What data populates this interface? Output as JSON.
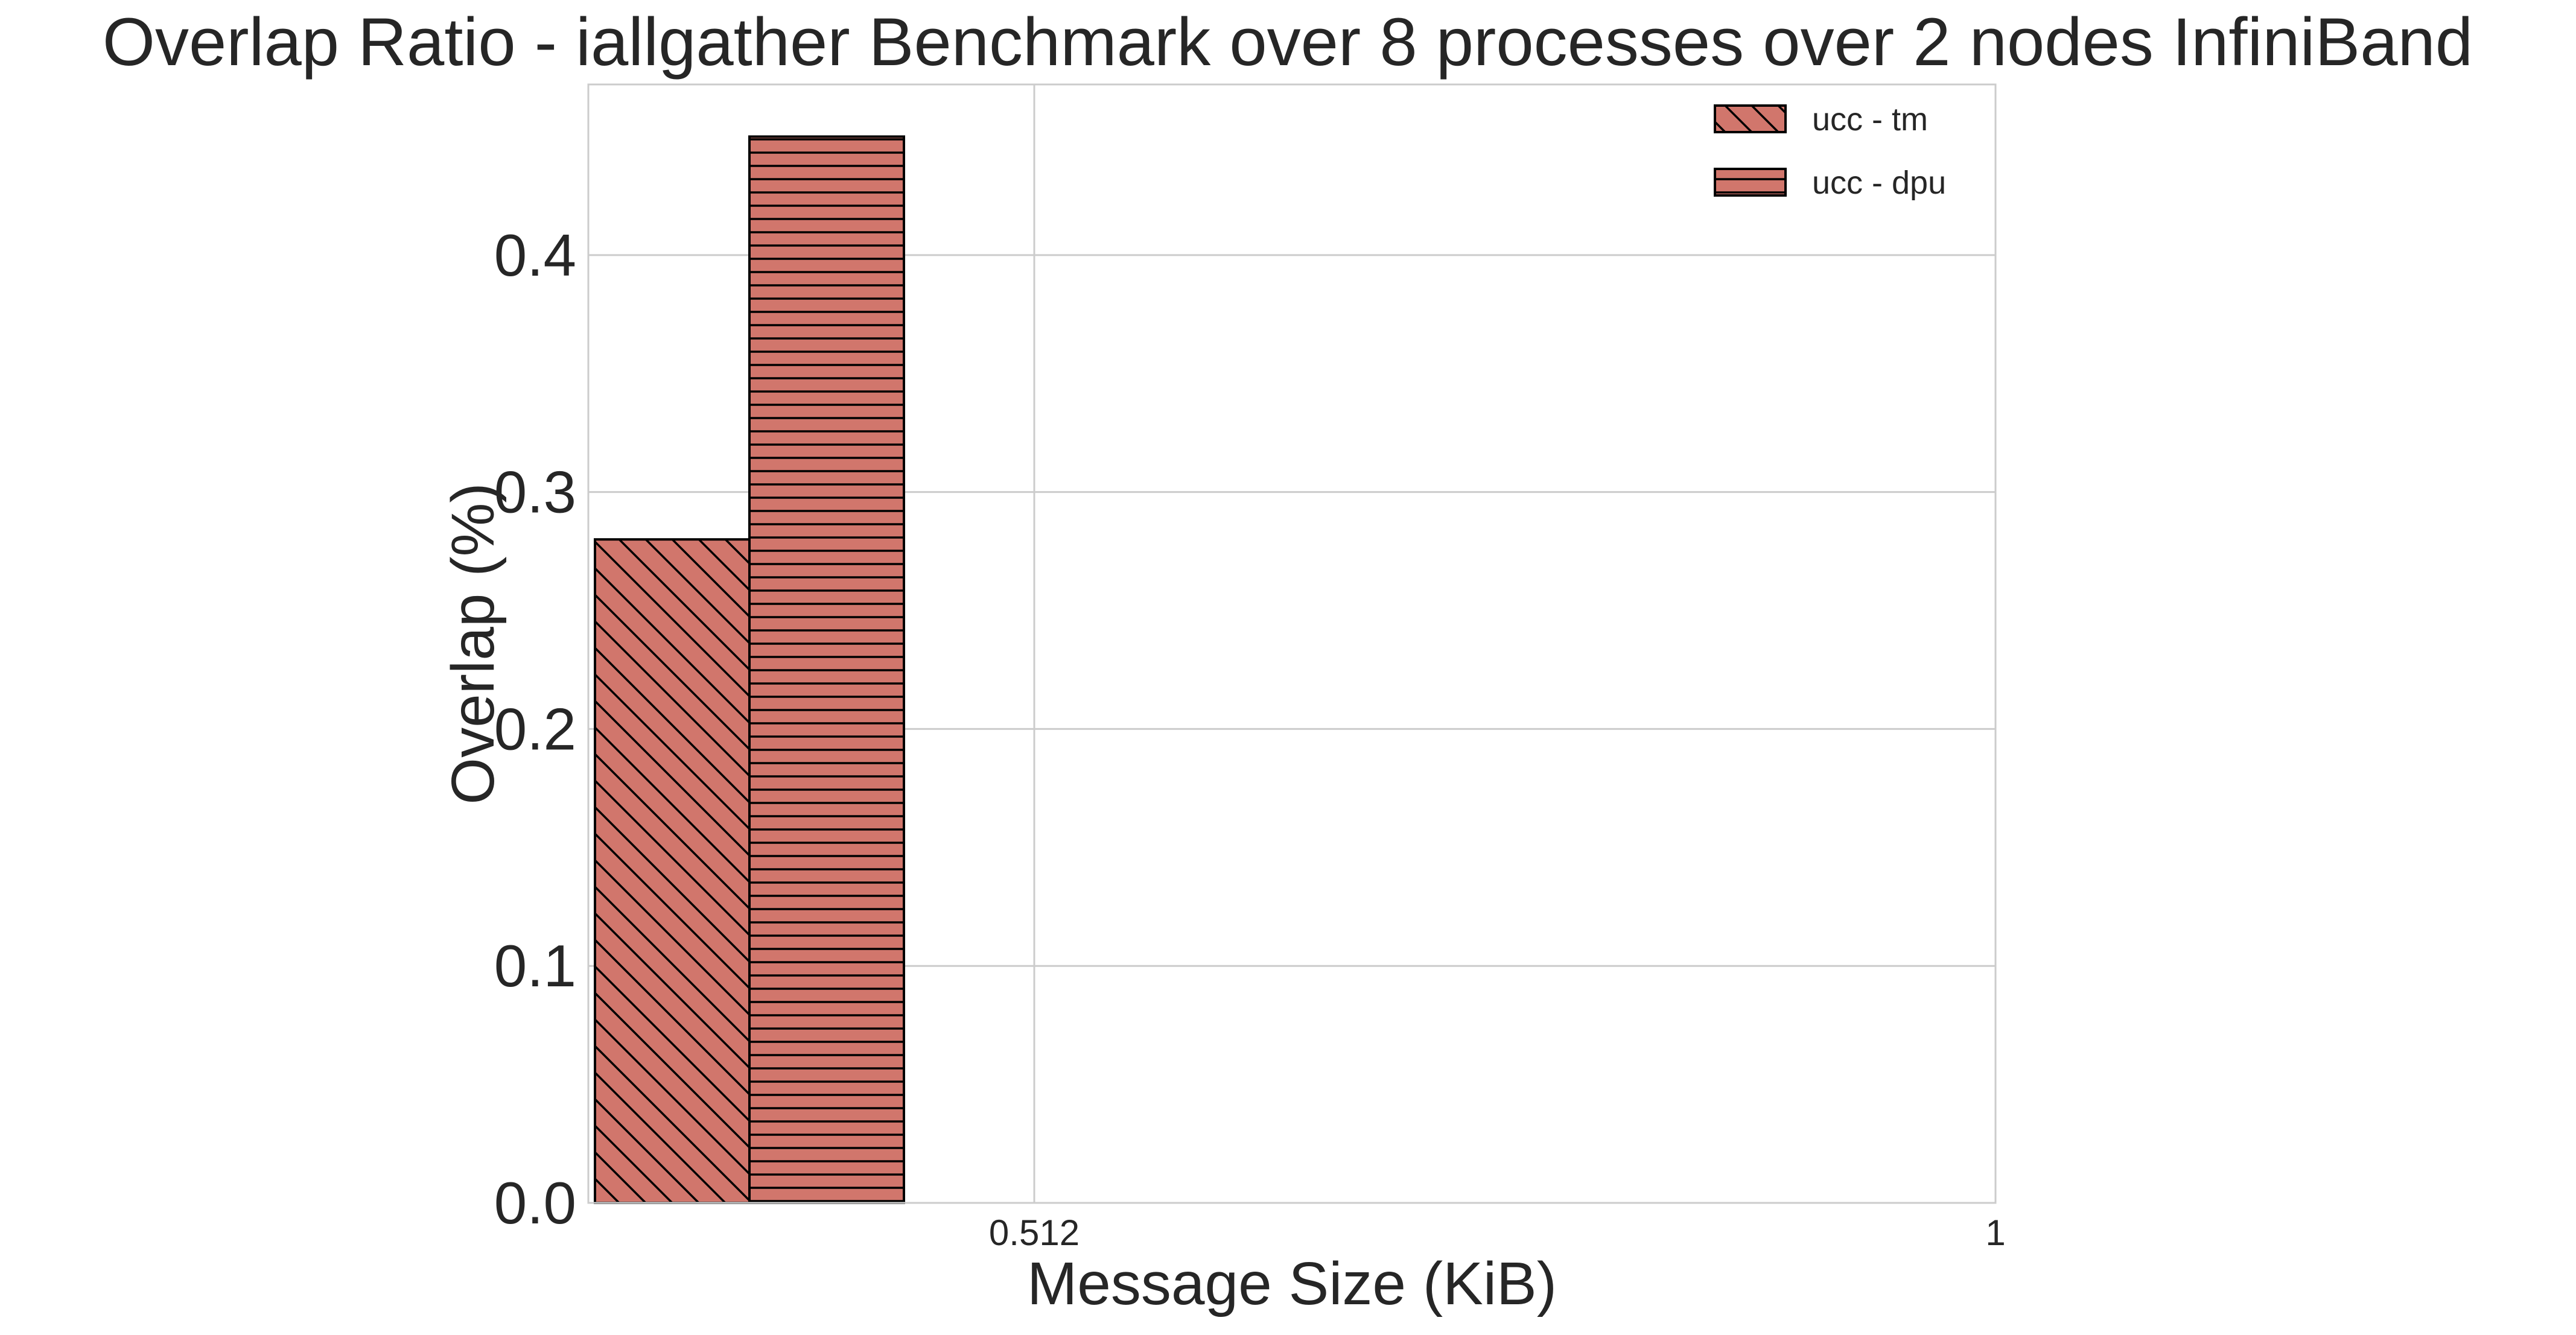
{
  "chart_data": {
    "type": "bar",
    "title": "Overlap Ratio - iallgather Benchmark over 8 processes over 2 nodes InfiniBand",
    "xlabel": "Message Size (KiB)",
    "ylabel": "Overlap (%)",
    "ylim": [
      0,
      0.472
    ],
    "yticks": [
      "0.0",
      "0.1",
      "0.2",
      "0.3",
      "0.4"
    ],
    "xticks": [
      "0.512",
      "1"
    ],
    "categories": [
      "0.512",
      "1"
    ],
    "grid": true,
    "legend_position": "top-right",
    "series": [
      {
        "name": "ucc - tm",
        "values": [
          0.28,
          null
        ],
        "color": "#d1766c",
        "hatch": "diagonal"
      },
      {
        "name": "ucc - dpu",
        "values": [
          0.45,
          null
        ],
        "color": "#d1766c",
        "hatch": "horizontal"
      }
    ]
  }
}
